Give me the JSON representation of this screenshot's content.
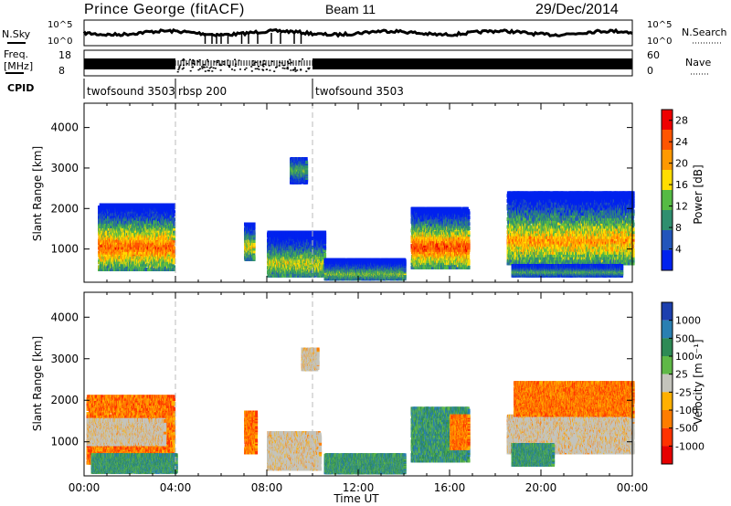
{
  "header": {
    "station": "Prince George (fitACF)",
    "beam": "Beam 11",
    "date": "29/Dec/2014"
  },
  "sky_panel": {
    "left_label": "N.Sky",
    "right_label": "N.Search",
    "ticks_left": [
      "10^5",
      "10^0"
    ],
    "ticks_right": [
      "10^5",
      "10^0"
    ]
  },
  "freq_panel": {
    "left_label_1": "Freq.",
    "left_label_2": "[MHz]",
    "right_label": "Nave",
    "ticks_left": [
      "18",
      "8"
    ],
    "ticks_right": [
      "60",
      "0"
    ]
  },
  "cpid": {
    "label": "CPID",
    "segments": [
      {
        "name": "twofsound 3503",
        "start_h": 0,
        "end_h": 4
      },
      {
        "name": "rbsp 200",
        "start_h": 4,
        "end_h": 10
      },
      {
        "name": "twofsound 3503",
        "start_h": 10,
        "end_h": 24
      }
    ]
  },
  "chart_data": [
    {
      "type": "heatmap",
      "name": "power",
      "ylabel": "Slant Range [km]",
      "xlabel": "",
      "xlim": [
        0,
        24
      ],
      "ylim": [
        180,
        4600
      ],
      "yticks": [
        "1000",
        "2000",
        "3000",
        "4000"
      ],
      "colorbar": {
        "label": "Power [dB]",
        "ticks": [
          "4",
          "8",
          "12",
          "16",
          "20",
          "24",
          "28"
        ],
        "range": [
          0,
          30
        ],
        "colors": [
          "#0022ee",
          "#2255bb",
          "#2f8f6f",
          "#55bb44",
          "#ffdd00",
          "#ff9900",
          "#ff5500",
          "#ee0000"
        ]
      },
      "blobs": [
        {
          "t0": 0.6,
          "t1": 3.9,
          "r0": 450,
          "r1": 2100,
          "peak_r": 1000,
          "level": 0.8
        },
        {
          "t0": 7.0,
          "t1": 7.4,
          "r0": 700,
          "r1": 1600,
          "peak_r": 1000,
          "level": 0.6
        },
        {
          "t0": 8.0,
          "t1": 10.5,
          "r0": 300,
          "r1": 1400,
          "peak_r": 600,
          "level": 0.55
        },
        {
          "t0": 9.0,
          "t1": 9.7,
          "r0": 2600,
          "r1": 3200,
          "peak_r": 2900,
          "level": 0.4
        },
        {
          "t0": 10.5,
          "t1": 14.0,
          "r0": 220,
          "r1": 700,
          "peak_r": 350,
          "level": 0.45
        },
        {
          "t0": 14.3,
          "t1": 16.8,
          "r0": 500,
          "r1": 2000,
          "peak_r": 1000,
          "level": 0.85
        },
        {
          "t0": 18.5,
          "t1": 24.0,
          "r0": 600,
          "r1": 2400,
          "peak_r": 1150,
          "level": 0.7
        },
        {
          "t0": 18.7,
          "t1": 23.5,
          "r0": 300,
          "r1": 550,
          "peak_r": 400,
          "level": 0.4
        }
      ]
    },
    {
      "type": "heatmap",
      "name": "velocity",
      "ylabel": "Slant Range [km]",
      "xlabel": "Time UT",
      "xlim": [
        0,
        24
      ],
      "ylim": [
        180,
        4600
      ],
      "xticks": [
        "00:00",
        "04:00",
        "08:00",
        "12:00",
        "16:00",
        "20:00",
        "00:00"
      ],
      "yticks": [
        "1000",
        "2000",
        "3000",
        "4000"
      ],
      "colorbar": {
        "label": "Velocity [m s⁻¹]",
        "ticks": [
          "1000",
          "500",
          "100",
          "25",
          "-25",
          "-100",
          "-500",
          "-1000"
        ],
        "colors": [
          "#1c3fae",
          "#2a7fb2",
          "#2e8a55",
          "#5fb847",
          "#c4c4bc",
          "#ffb000",
          "#ff7d00",
          "#ff3300",
          "#e60000"
        ]
      },
      "blobs": [
        {
          "t0": 0.1,
          "t1": 3.9,
          "r0": 450,
          "r1": 2100,
          "kind": "neg"
        },
        {
          "t0": 0.1,
          "t1": 3.5,
          "r0": 900,
          "r1": 1500,
          "kind": "gray"
        },
        {
          "t0": 0.3,
          "t1": 4.0,
          "r0": 230,
          "r1": 650,
          "kind": "pos"
        },
        {
          "t0": 7.0,
          "t1": 7.5,
          "r0": 700,
          "r1": 1700,
          "kind": "neg"
        },
        {
          "t0": 8.0,
          "t1": 10.3,
          "r0": 300,
          "r1": 1200,
          "kind": "gray"
        },
        {
          "t0": 9.5,
          "t1": 10.2,
          "r0": 2700,
          "r1": 3200,
          "kind": "gray"
        },
        {
          "t0": 10.5,
          "t1": 14.0,
          "r0": 220,
          "r1": 650,
          "kind": "pos"
        },
        {
          "t0": 14.3,
          "t1": 16.8,
          "r0": 500,
          "r1": 1800,
          "kind": "pos"
        },
        {
          "t0": 16.0,
          "t1": 16.8,
          "r0": 800,
          "r1": 1600,
          "kind": "neg"
        },
        {
          "t0": 18.5,
          "t1": 24.0,
          "r0": 700,
          "r1": 1600,
          "kind": "gray"
        },
        {
          "t0": 18.8,
          "t1": 24.0,
          "r0": 1600,
          "r1": 2400,
          "kind": "neg"
        },
        {
          "t0": 18.7,
          "t1": 20.5,
          "r0": 400,
          "r1": 900,
          "kind": "pos"
        }
      ]
    }
  ]
}
